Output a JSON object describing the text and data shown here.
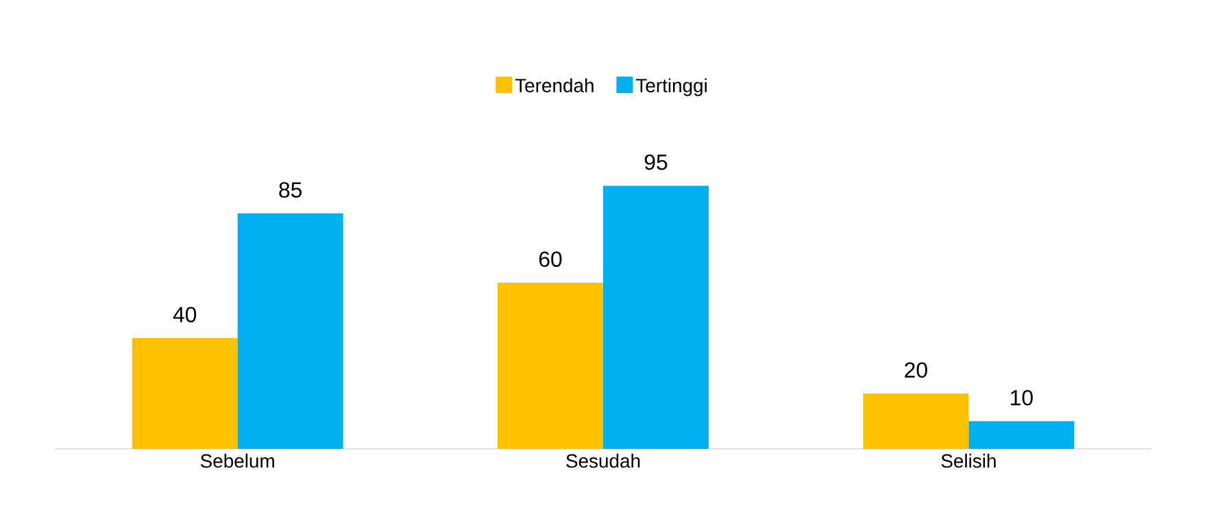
{
  "chart_data": {
    "type": "bar",
    "categories": [
      "Sebelum",
      "Sesudah",
      "Selisih"
    ],
    "series": [
      {
        "name": "Terendah",
        "color": "#ffc000",
        "values": [
          40,
          60,
          20
        ]
      },
      {
        "name": "Tertinggi",
        "color": "#00b0f0",
        "values": [
          85,
          95,
          10
        ]
      }
    ],
    "data_labels": true,
    "legend": "top"
  }
}
